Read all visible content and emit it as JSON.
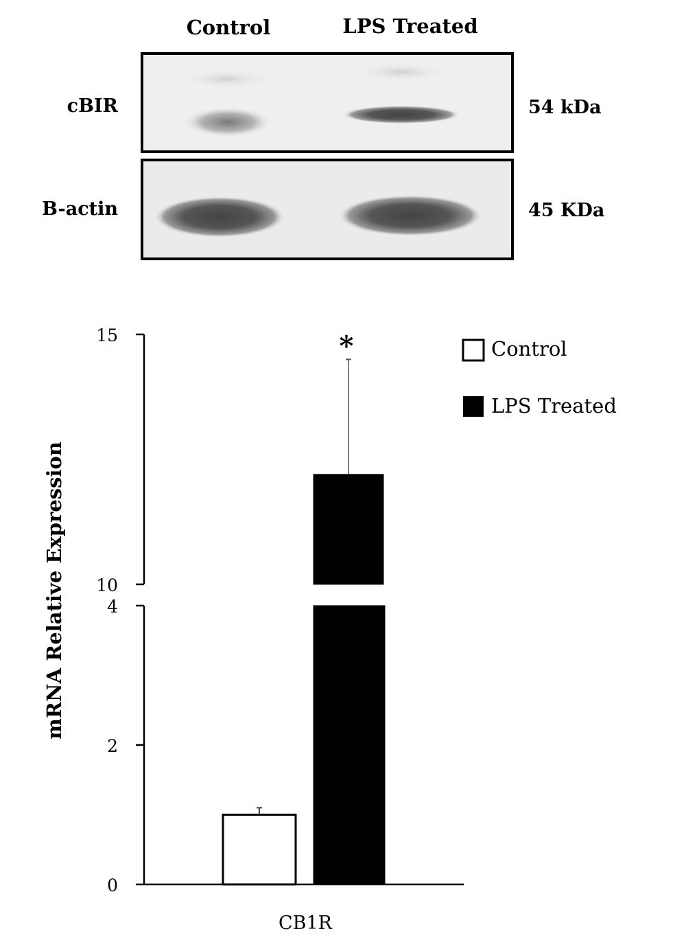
{
  "blot": {
    "lane_labels": [
      "Control",
      "LPS Treated"
    ],
    "row_labels": [
      "cBIR",
      "B-actin"
    ],
    "sizes": [
      "54 kDa",
      "45 KDa"
    ]
  },
  "chart_data": {
    "type": "bar",
    "title": "",
    "xlabel": "CB1R",
    "ylabel": "mRNA Relative Expression",
    "categories": [
      "CB1R"
    ],
    "series": [
      {
        "name": "Control",
        "values": [
          1.0
        ],
        "error": [
          0.1
        ],
        "color": "#ffffff"
      },
      {
        "name": "LPS Treated",
        "values": [
          12.2
        ],
        "error": [
          2.3
        ],
        "color": "#000000"
      }
    ],
    "axis_break": {
      "lower_range": [
        0,
        4
      ],
      "upper_range": [
        10,
        15
      ]
    },
    "lower_ticks": [
      0,
      2,
      4
    ],
    "upper_ticks": [
      10,
      15
    ],
    "significance_marker": "*",
    "legend_position": "top-right",
    "grid": false
  }
}
